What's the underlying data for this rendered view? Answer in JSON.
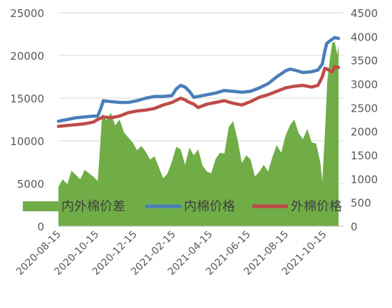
{
  "chart_data": {
    "type": "line",
    "x_ticks": [
      "2020-08-15",
      "2020-10-15",
      "2020-12-15",
      "2021-02-15",
      "2021-04-15",
      "2021-06-15",
      "2021-08-15",
      "2021-10-15"
    ],
    "y_left": {
      "ticks": [
        0,
        5000,
        10000,
        15000,
        20000,
        25000
      ],
      "range": [
        0,
        25000
      ]
    },
    "y_right": {
      "ticks": [
        0,
        500,
        1000,
        1500,
        2000,
        2500,
        3000,
        3500,
        4000,
        4500
      ],
      "range": [
        0,
        4500
      ]
    },
    "grid": true,
    "legend_position": "middle-left",
    "series": [
      {
        "name": "内外棉价差",
        "type": "area",
        "axis": "left",
        "color": "#70ad47",
        "points": [
          [
            "2020-08-15",
            4600
          ],
          [
            "2020-08-22",
            5500
          ],
          [
            "2020-08-29",
            4900
          ],
          [
            "2020-09-05",
            6500
          ],
          [
            "2020-09-12",
            6000
          ],
          [
            "2020-09-19",
            5500
          ],
          [
            "2020-09-26",
            6600
          ],
          [
            "2020-10-03",
            6200
          ],
          [
            "2020-10-10",
            5800
          ],
          [
            "2020-10-17",
            5300
          ],
          [
            "2020-10-21",
            9500
          ],
          [
            "2020-10-24",
            13200
          ],
          [
            "2020-10-31",
            12400
          ],
          [
            "2020-11-07",
            13300
          ],
          [
            "2020-11-14",
            11800
          ],
          [
            "2020-11-21",
            12500
          ],
          [
            "2020-11-28",
            11000
          ],
          [
            "2020-12-05",
            10400
          ],
          [
            "2020-12-12",
            9800
          ],
          [
            "2020-12-19",
            8900
          ],
          [
            "2020-12-26",
            9400
          ],
          [
            "2021-01-02",
            8700
          ],
          [
            "2021-01-09",
            7800
          ],
          [
            "2021-01-16",
            8200
          ],
          [
            "2021-01-23",
            6900
          ],
          [
            "2021-01-30",
            5600
          ],
          [
            "2021-02-06",
            6200
          ],
          [
            "2021-02-13",
            7600
          ],
          [
            "2021-02-20",
            9300
          ],
          [
            "2021-02-27",
            9000
          ],
          [
            "2021-03-06",
            7200
          ],
          [
            "2021-03-13",
            9200
          ],
          [
            "2021-03-20",
            8300
          ],
          [
            "2021-03-27",
            9000
          ],
          [
            "2021-04-03",
            7100
          ],
          [
            "2021-04-10",
            6400
          ],
          [
            "2021-04-17",
            6200
          ],
          [
            "2021-04-24",
            7900
          ],
          [
            "2021-05-01",
            8600
          ],
          [
            "2021-05-08",
            8500
          ],
          [
            "2021-05-15",
            11600
          ],
          [
            "2021-05-22",
            12300
          ],
          [
            "2021-05-29",
            10200
          ],
          [
            "2021-06-05",
            7400
          ],
          [
            "2021-06-12",
            8300
          ],
          [
            "2021-06-19",
            7800
          ],
          [
            "2021-06-26",
            5800
          ],
          [
            "2021-07-03",
            6400
          ],
          [
            "2021-07-10",
            7200
          ],
          [
            "2021-07-17",
            6400
          ],
          [
            "2021-07-24",
            8100
          ],
          [
            "2021-07-31",
            9500
          ],
          [
            "2021-08-07",
            8600
          ],
          [
            "2021-08-14",
            10600
          ],
          [
            "2021-08-21",
            11800
          ],
          [
            "2021-08-28",
            12500
          ],
          [
            "2021-09-04",
            10900
          ],
          [
            "2021-09-11",
            10200
          ],
          [
            "2021-09-18",
            11400
          ],
          [
            "2021-09-25",
            9800
          ],
          [
            "2021-10-02",
            9700
          ],
          [
            "2021-10-09",
            7400
          ],
          [
            "2021-10-12",
            5200
          ],
          [
            "2021-10-16",
            10600
          ],
          [
            "2021-10-20",
            17000
          ],
          [
            "2021-10-24",
            19500
          ],
          [
            "2021-10-28",
            21500
          ],
          [
            "2021-11-01",
            21600
          ],
          [
            "2021-11-05",
            20100
          ],
          [
            "2021-11-07",
            21300
          ]
        ]
      },
      {
        "name": "内棉价格",
        "type": "line",
        "axis": "left",
        "color": "#4a7ebb",
        "points": [
          [
            "2020-08-15",
            12300
          ],
          [
            "2020-08-29",
            12500
          ],
          [
            "2020-09-12",
            12700
          ],
          [
            "2020-09-26",
            12800
          ],
          [
            "2020-10-10",
            12900
          ],
          [
            "2020-10-17",
            12900
          ],
          [
            "2020-10-22",
            13800
          ],
          [
            "2020-10-26",
            14700
          ],
          [
            "2020-11-07",
            14600
          ],
          [
            "2020-11-21",
            14500
          ],
          [
            "2020-12-05",
            14500
          ],
          [
            "2020-12-19",
            14700
          ],
          [
            "2021-01-02",
            15000
          ],
          [
            "2021-01-16",
            15200
          ],
          [
            "2021-01-30",
            15200
          ],
          [
            "2021-02-13",
            15300
          ],
          [
            "2021-02-20",
            16100
          ],
          [
            "2021-02-27",
            16500
          ],
          [
            "2021-03-06",
            16300
          ],
          [
            "2021-03-13",
            15800
          ],
          [
            "2021-03-20",
            15100
          ],
          [
            "2021-03-27",
            15200
          ],
          [
            "2021-04-10",
            15400
          ],
          [
            "2021-04-24",
            15600
          ],
          [
            "2021-05-08",
            15900
          ],
          [
            "2021-05-22",
            15800
          ],
          [
            "2021-06-05",
            15700
          ],
          [
            "2021-06-19",
            15800
          ],
          [
            "2021-07-03",
            16200
          ],
          [
            "2021-07-17",
            16700
          ],
          [
            "2021-07-31",
            17500
          ],
          [
            "2021-08-14",
            18200
          ],
          [
            "2021-08-21",
            18400
          ],
          [
            "2021-08-28",
            18300
          ],
          [
            "2021-09-11",
            18000
          ],
          [
            "2021-09-25",
            18100
          ],
          [
            "2021-10-05",
            18300
          ],
          [
            "2021-10-12",
            19000
          ],
          [
            "2021-10-16",
            20500
          ],
          [
            "2021-10-19",
            21400
          ],
          [
            "2021-10-24",
            21700
          ],
          [
            "2021-10-28",
            21900
          ],
          [
            "2021-11-01",
            22100
          ],
          [
            "2021-11-07",
            22000
          ]
        ]
      },
      {
        "name": "外棉价格",
        "type": "line",
        "axis": "left",
        "color": "#be4b48",
        "points": [
          [
            "2020-08-15",
            11700
          ],
          [
            "2020-08-29",
            11800
          ],
          [
            "2020-09-12",
            11900
          ],
          [
            "2020-09-26",
            12000
          ],
          [
            "2020-10-10",
            12200
          ],
          [
            "2020-10-17",
            12500
          ],
          [
            "2020-10-26",
            12800
          ],
          [
            "2020-11-07",
            12700
          ],
          [
            "2020-11-21",
            12900
          ],
          [
            "2020-12-05",
            13300
          ],
          [
            "2020-12-19",
            13500
          ],
          [
            "2021-01-02",
            13600
          ],
          [
            "2021-01-16",
            13800
          ],
          [
            "2021-01-30",
            14200
          ],
          [
            "2021-02-13",
            14500
          ],
          [
            "2021-02-27",
            15000
          ],
          [
            "2021-03-06",
            14800
          ],
          [
            "2021-03-13",
            14500
          ],
          [
            "2021-03-20",
            14300
          ],
          [
            "2021-03-27",
            13900
          ],
          [
            "2021-04-10",
            14300
          ],
          [
            "2021-04-24",
            14500
          ],
          [
            "2021-05-08",
            14700
          ],
          [
            "2021-05-22",
            14400
          ],
          [
            "2021-06-05",
            14200
          ],
          [
            "2021-06-19",
            14600
          ],
          [
            "2021-07-03",
            15100
          ],
          [
            "2021-07-17",
            15400
          ],
          [
            "2021-07-31",
            15800
          ],
          [
            "2021-08-14",
            16200
          ],
          [
            "2021-08-28",
            16400
          ],
          [
            "2021-09-11",
            16500
          ],
          [
            "2021-09-25",
            16300
          ],
          [
            "2021-10-05",
            16500
          ],
          [
            "2021-10-12",
            17500
          ],
          [
            "2021-10-16",
            18500
          ],
          [
            "2021-10-20",
            18400
          ],
          [
            "2021-10-24",
            18200
          ],
          [
            "2021-10-28",
            18100
          ],
          [
            "2021-11-01",
            18700
          ],
          [
            "2021-11-07",
            18600
          ]
        ]
      }
    ]
  }
}
